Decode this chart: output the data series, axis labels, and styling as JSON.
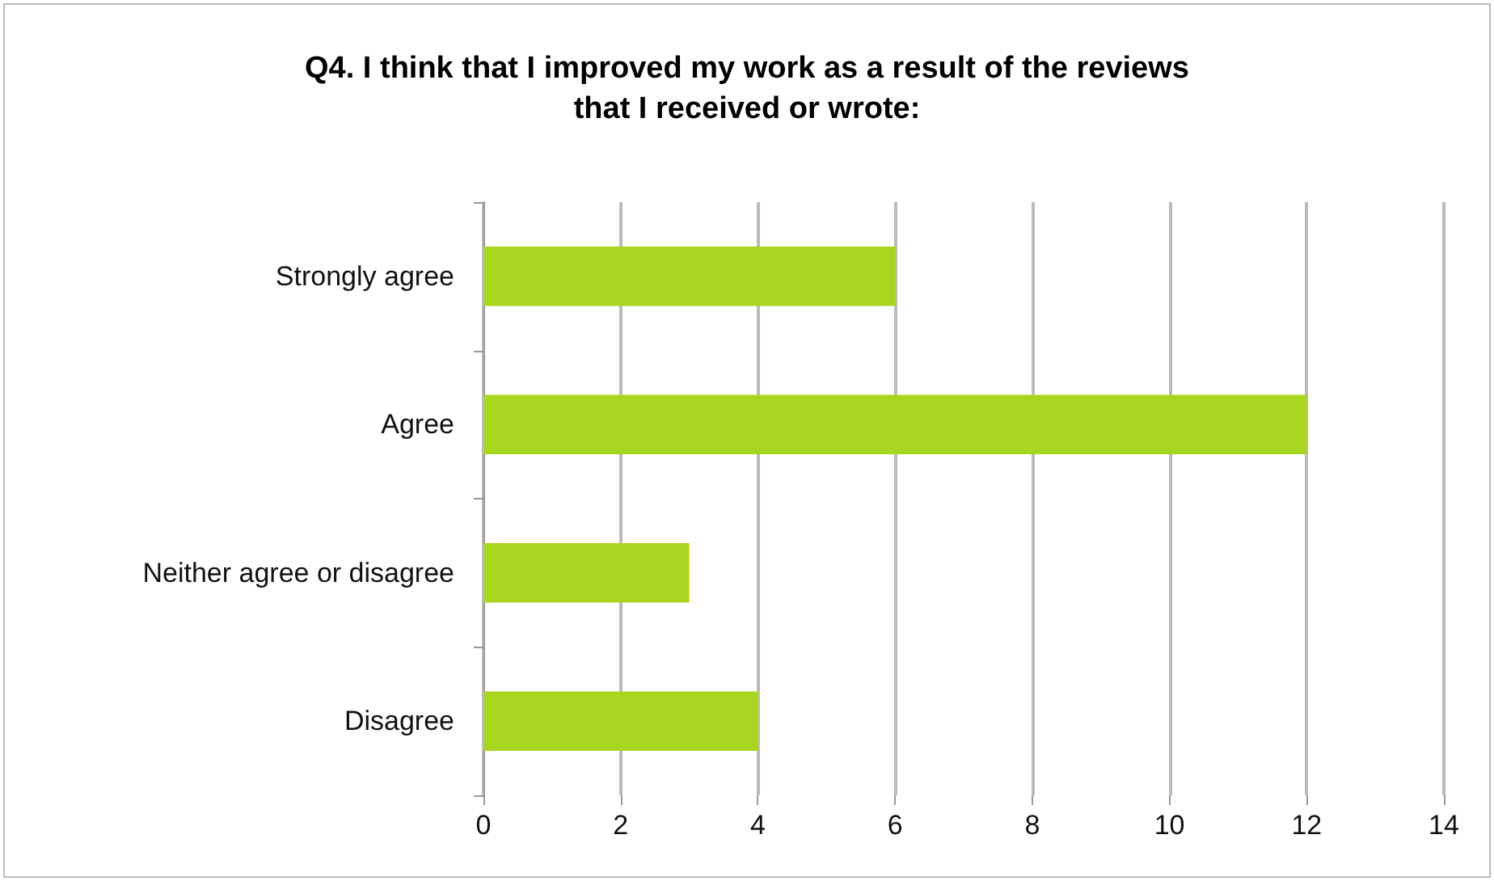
{
  "chart_data": {
    "type": "bar",
    "orientation": "horizontal",
    "title": "Q4. I think that I improved my work as a result of the reviews\nthat I received or wrote:",
    "categories": [
      "Strongly agree",
      "Agree",
      "Neither agree or disagree",
      "Disagree"
    ],
    "values": [
      6,
      12,
      3,
      4
    ],
    "color": "#a8d51e",
    "xlim": [
      0,
      14
    ],
    "xticks": [
      0,
      2,
      4,
      6,
      8,
      10,
      12,
      14
    ],
    "grid": "x"
  }
}
